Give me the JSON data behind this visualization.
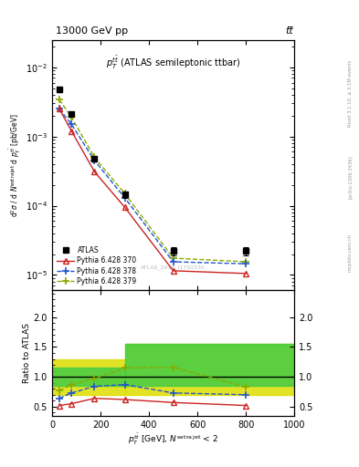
{
  "header": "13000 GeV pp",
  "header_right": "tt̅",
  "title_main": "$p_T^{t\\bar{t}}$ (ATLAS semileptonic ttbar)",
  "rivet_label": "Rivet 3.1.10, ≥ 3.1M events",
  "arxiv_label": "[arXiv:1306.3436]",
  "mcplots_label": "mcplots.cern.ch",
  "watermark": "ATLAS_2019_I1750330",
  "ylabel_main": "d$^2\\sigma$ / d $N^{\\mathrm{extra\\,jet}}$ d $p_T^{t\\bar{t}}$ [pb/GeV]",
  "xlabel": "$p_T^{t\\bar{t}{}}$ [GeV], $N^{\\mathrm{extra\\,jet}}$ < 2",
  "ylabel_ratio": "Ratio to ATLAS",
  "xlim": [
    0,
    1000
  ],
  "ylim_main": [
    6e-06,
    0.025
  ],
  "ylim_ratio": [
    0.35,
    2.45
  ],
  "ratio_yticks": [
    0.5,
    1.0,
    1.5,
    2.0
  ],
  "x_data": [
    30,
    80,
    175,
    300,
    500,
    800
  ],
  "atlas_y": [
    0.0048,
    0.0021,
    0.00048,
    0.000145,
    2.2e-05,
    2.2e-05
  ],
  "atlas_yerr": [
    0.0004,
    0.00015,
    4e-05,
    1.5e-05,
    3e-06,
    3e-06
  ],
  "py370_y": [
    0.0025,
    0.0012,
    0.00031,
    9.5e-05,
    1.15e-05,
    1.05e-05
  ],
  "py378_y": [
    0.0025,
    0.0015,
    0.00045,
    0.00013,
    1.55e-05,
    1.45e-05
  ],
  "py379_y": [
    0.0034,
    0.0019,
    0.0005,
    0.00015,
    1.75e-05,
    1.55e-05
  ],
  "py370_ratio": [
    0.52,
    0.55,
    0.64,
    0.62,
    0.57,
    0.52
  ],
  "py378_ratio": [
    0.64,
    0.73,
    0.84,
    0.87,
    0.73,
    0.7
  ],
  "py379_ratio": [
    0.77,
    0.87,
    0.97,
    1.15,
    1.16,
    0.83
  ],
  "color_atlas": "#000000",
  "color_py370": "#cc2222",
  "color_py378": "#2255cc",
  "color_py379": "#88aa00",
  "color_band_green": "#44cc44",
  "color_band_yellow": "#dddd00",
  "legend_labels": [
    "ATLAS",
    "Pythia 6.428 370",
    "Pythia 6.428 378",
    "Pythia 6.428 379"
  ],
  "background_color": "#ffffff"
}
